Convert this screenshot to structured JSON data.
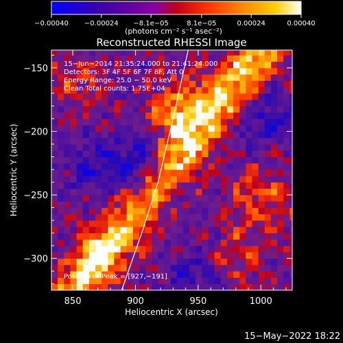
{
  "chart_data": {
    "type": "heatmap",
    "title": "Reconstructed RHESSI Image",
    "xlabel": "Heliocentric X (arcsec)",
    "ylabel": "Heliocentric Y (arcsec)",
    "xlim": [
      833,
      1025
    ],
    "ylim": [
      -325,
      -136
    ],
    "xticks": [
      850,
      900,
      950,
      1000
    ],
    "xtick_labels": [
      "850",
      "900",
      "950",
      "1000"
    ],
    "yticks": [
      -150,
      -200,
      -250,
      -300
    ],
    "ytick_labels": [
      "−150",
      "−200",
      "−250",
      "−300"
    ],
    "colorbar": {
      "min": -0.0004,
      "max": 0.0004,
      "ticks": [
        -0.0004,
        -0.00024,
        -8.1e-05,
        8.1e-05,
        0.00024,
        0.0004
      ],
      "tick_labels": [
        "−0.00040",
        "−0.00024",
        "−8.1e−05",
        "8.1e−05",
        "0.00024",
        "0.00040"
      ],
      "unit_label": "(photons cm⁻² s⁻¹ asec⁻²)",
      "colors": [
        "#0000ff",
        "#400080",
        "#8000a0",
        "#c00000",
        "#ff5000",
        "#ff9000",
        "#ffd000",
        "#ffffff"
      ]
    },
    "annotations": [
      "15−Jun−2014 21:35:24.000 to 21:41:24.000",
      "Detectors: 3F 4F 5F 6F 7F 8F, Att 0",
      "Energy Range: 25.0 − 50.0 keV",
      "Clean     Total counts: 1.75E+04"
    ],
    "peak_label": "Position of Peak = [927,−191]",
    "peak": [
      927,
      -191
    ],
    "limb_curve": [
      [
        889,
        -325
      ],
      [
        905,
        -280
      ],
      [
        918,
        -240
      ],
      [
        930,
        -190
      ],
      [
        942,
        -136
      ]
    ],
    "grid": false
  },
  "footer_date": "15−May−2022 18:22"
}
